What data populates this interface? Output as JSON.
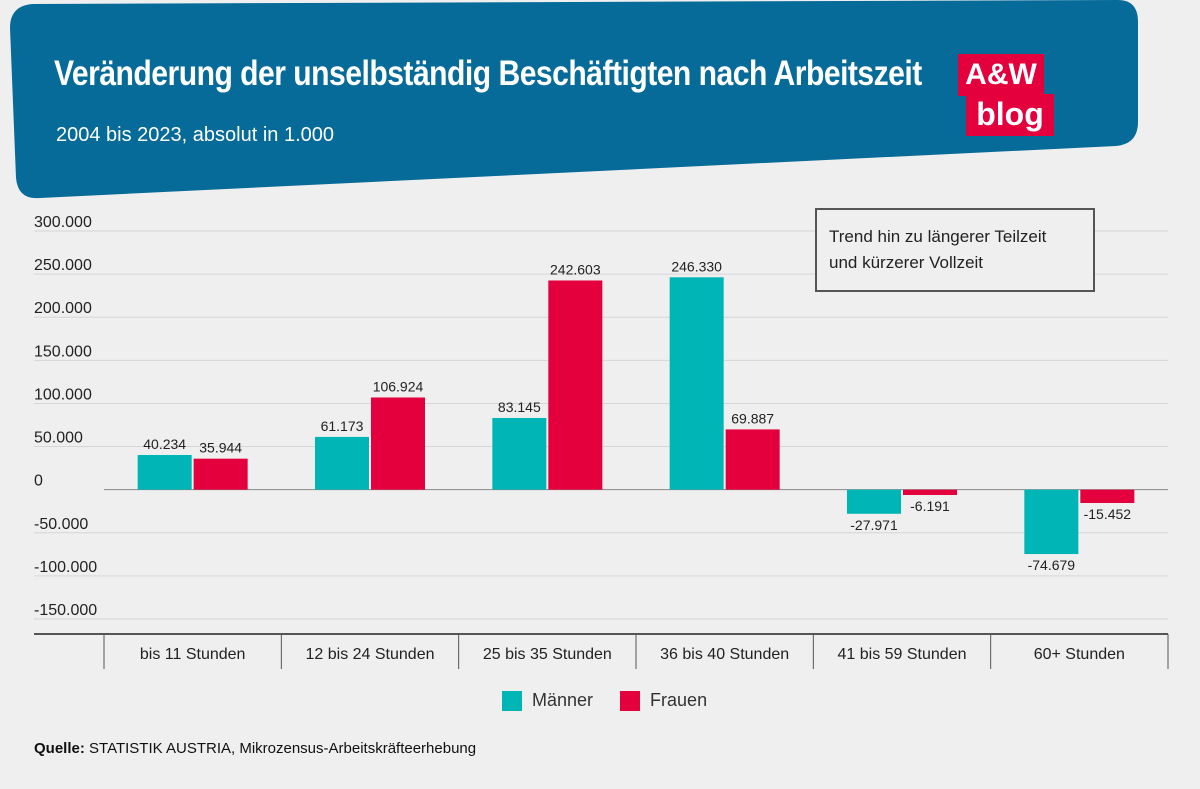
{
  "header": {
    "title": "Veränderung der unselbständig Beschäftigten nach Arbeitszeit",
    "subtitle": "2004 bis 2023, absolut in 1.000",
    "banner_color": "#066b99",
    "logo": {
      "line1": "A&W",
      "line2": "blog",
      "color": "#e4003d"
    }
  },
  "annotation": {
    "line1": "Trend hin zu längerer Teilzeit",
    "line2": "und kürzerer Vollzeit"
  },
  "chart_data": {
    "type": "bar",
    "title": "Veränderung der unselbständig Beschäftigten nach Arbeitszeit",
    "subtitle": "2004 bis 2023, absolut in 1.000",
    "xlabel": "",
    "ylabel": "",
    "categories": [
      "bis 11 Stunden",
      "12 bis 24 Stunden",
      "25 bis 35 Stunden",
      "36 bis 40 Stunden",
      "41 bis 59 Stunden",
      "60+ Stunden"
    ],
    "series": [
      {
        "name": "Männer",
        "color": "#00b5b5",
        "values": [
          40234,
          61173,
          83145,
          246330,
          -27971,
          -74679
        ],
        "labels": [
          "40.234",
          "61.173",
          "83.145",
          "246.330",
          "-27.971",
          "-74.679"
        ]
      },
      {
        "name": "Frauen",
        "color": "#e4003d",
        "values": [
          35944,
          106924,
          242603,
          69887,
          -6191,
          -15452
        ],
        "labels": [
          "35.944",
          "106.924",
          "242.603",
          "69.887",
          "-6.191",
          "-15.452"
        ]
      }
    ],
    "ylim": [
      -150000,
      300000
    ],
    "yticks": [
      300000,
      250000,
      200000,
      150000,
      100000,
      50000,
      0,
      -50000,
      -100000,
      -150000
    ],
    "ytick_labels": [
      "300.000",
      "250.000",
      "200.000",
      "150.000",
      "100.000",
      "50.000",
      "0",
      "-50.000",
      "-100.000",
      "-150.000"
    ],
    "grid": true,
    "legend": "bottom-center"
  },
  "source": {
    "label": "Quelle:",
    "text": "STATISTIK AUSTRIA, Mikrozensus-Arbeitskräfteerhebung"
  }
}
